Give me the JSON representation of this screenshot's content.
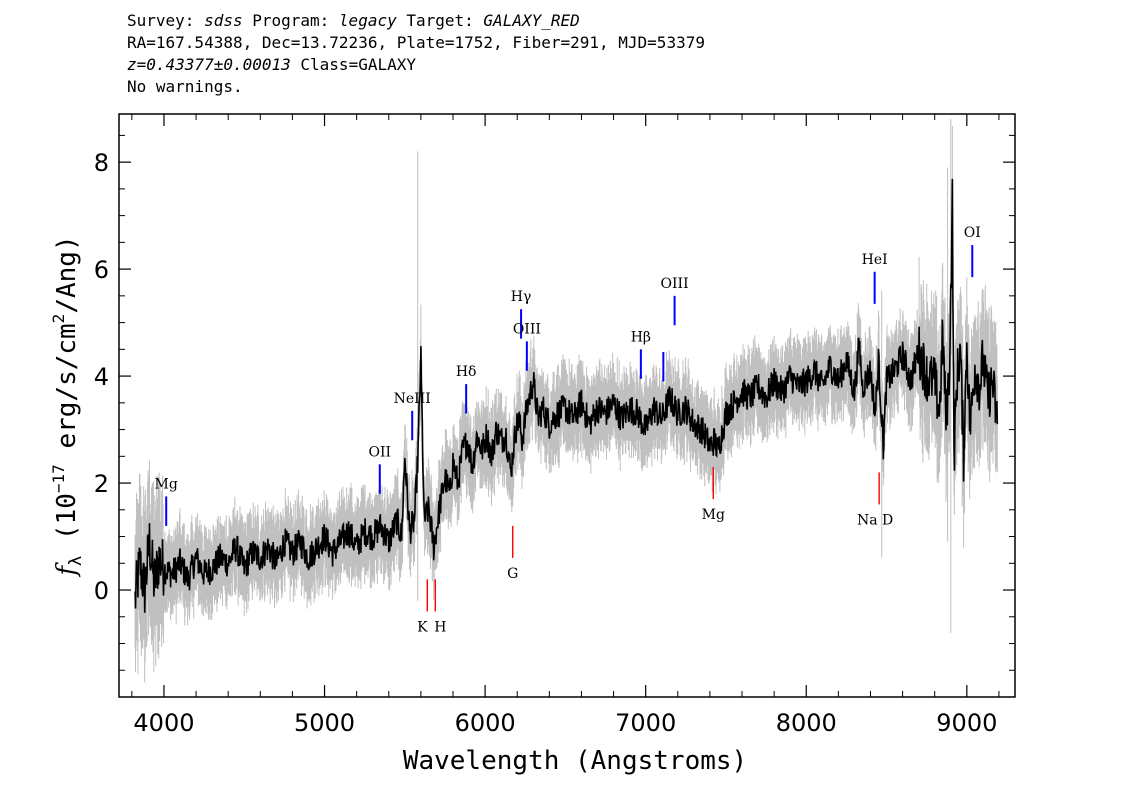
{
  "header": {
    "survey_label": "Survey: ",
    "survey": "sdss",
    "program_label": " Program: ",
    "program": "legacy",
    "target_label": " Target: ",
    "target": "GALAXY_RED",
    "line2": "RA=167.54388, Dec=13.72236, Plate=1752, Fiber=291, MJD=53379",
    "redshift": "z=0.43377±0.00013",
    "class_text": " Class=GALAXY",
    "line4": "No warnings."
  },
  "chart_data": {
    "type": "line",
    "xlabel": "Wavelength (Angstroms)",
    "ylabel_parts": [
      "f",
      "λ",
      " (10",
      "−17",
      " erg/s/cm",
      "2",
      "/Ang)"
    ],
    "xlim": [
      3720,
      9300
    ],
    "ylim": [
      -2.0,
      8.9
    ],
    "x_ticks": [
      4000,
      5000,
      6000,
      7000,
      8000,
      9000
    ],
    "y_ticks": [
      0,
      2,
      4,
      6,
      8
    ],
    "x_minor_step": 200,
    "y_minor_step": 0.5,
    "colors": {
      "flux": "#000000",
      "noise": "#c0c0c0",
      "emission": "#0000ff",
      "absorption": "#ff0000"
    },
    "series": [
      {
        "role": "flux",
        "x": [
          3820,
          3850,
          3880,
          3910,
          3940,
          3970,
          4000,
          4050,
          4100,
          4150,
          4200,
          4250,
          4300,
          4350,
          4400,
          4450,
          4500,
          4550,
          4600,
          4650,
          4700,
          4750,
          4800,
          4850,
          4900,
          4950,
          5000,
          5050,
          5100,
          5150,
          5200,
          5250,
          5300,
          5350,
          5400,
          5450,
          5480,
          5500,
          5530,
          5560,
          5580,
          5600,
          5620,
          5650,
          5680,
          5700,
          5720,
          5750,
          5780,
          5800,
          5830,
          5860,
          5890,
          5920,
          5950,
          5980,
          6010,
          6040,
          6070,
          6100,
          6130,
          6160,
          6190,
          6210,
          6230,
          6260,
          6300,
          6330,
          6360,
          6400,
          6450,
          6500,
          6550,
          6600,
          6650,
          6700,
          6750,
          6800,
          6850,
          6900,
          6950,
          7000,
          7050,
          7100,
          7150,
          7200,
          7250,
          7300,
          7350,
          7400,
          7430,
          7450,
          7480,
          7500,
          7550,
          7600,
          7650,
          7700,
          7750,
          7800,
          7850,
          7900,
          7950,
          8000,
          8050,
          8100,
          8150,
          8200,
          8250,
          8300,
          8330,
          8350,
          8400,
          8430,
          8450,
          8480,
          8500,
          8550,
          8600,
          8650,
          8700,
          8750,
          8800,
          8830,
          8850,
          8870,
          8890,
          8900,
          8910,
          8920,
          8940,
          8960,
          8980,
          9000,
          9020,
          9050,
          9080,
          9100,
          9130,
          9160,
          9190
        ],
        "y": [
          -0.2,
          0.5,
          0.0,
          0.9,
          0.1,
          0.6,
          0.4,
          0.3,
          0.5,
          0.2,
          0.6,
          0.3,
          0.4,
          0.6,
          0.5,
          0.8,
          0.4,
          0.7,
          0.6,
          0.8,
          0.5,
          0.9,
          0.7,
          0.9,
          0.6,
          0.8,
          1.0,
          0.7,
          0.9,
          1.1,
          0.8,
          1.1,
          1.0,
          1.2,
          0.9,
          1.3,
          1.0,
          2.5,
          1.1,
          1.3,
          2.4,
          4.3,
          1.3,
          1.5,
          0.8,
          1.2,
          1.6,
          2.1,
          1.8,
          2.4,
          2.0,
          2.6,
          2.8,
          2.3,
          2.9,
          2.6,
          2.9,
          2.5,
          3.0,
          2.8,
          2.9,
          2.2,
          3.0,
          3.2,
          2.8,
          3.4,
          3.9,
          3.2,
          3.4,
          3.1,
          3.3,
          3.4,
          3.2,
          3.5,
          3.1,
          3.4,
          3.3,
          3.5,
          3.2,
          3.4,
          3.3,
          3.0,
          3.4,
          3.2,
          3.6,
          3.3,
          3.4,
          3.1,
          3.0,
          2.7,
          2.8,
          2.6,
          3.0,
          3.3,
          3.5,
          3.7,
          3.6,
          3.8,
          3.6,
          3.9,
          3.7,
          4.0,
          3.8,
          3.9,
          4.1,
          3.8,
          4.2,
          3.9,
          4.3,
          3.7,
          4.6,
          3.8,
          4.1,
          3.3,
          4.3,
          2.7,
          3.9,
          4.1,
          4.4,
          3.9,
          4.5,
          4.0,
          3.9,
          3.3,
          4.8,
          3.2,
          4.0,
          5.5,
          7.3,
          2.5,
          4.0,
          4.5,
          2.5,
          4.6,
          3.0,
          4.2,
          3.8,
          4.3,
          3.6,
          3.9,
          3.1
        ]
      }
    ],
    "lines": [
      {
        "label": "Mg",
        "x": 4014,
        "type": "emission",
        "y0": 1.2,
        "y1": 1.75
      },
      {
        "label": "OII",
        "x": 5344,
        "type": "emission",
        "y0": 1.8,
        "y1": 2.35
      },
      {
        "label": "NeIII",
        "x": 5546,
        "type": "emission",
        "y0": 2.8,
        "y1": 3.35
      },
      {
        "label": "Hδ",
        "x": 5882,
        "type": "emission",
        "y0": 3.3,
        "y1": 3.85
      },
      {
        "label": "Hγ",
        "x": 6224,
        "type": "emission",
        "y0": 4.7,
        "y1": 5.25
      },
      {
        "label": "OIII",
        "x": 6260,
        "type": "emission",
        "y0": 4.1,
        "y1": 4.65
      },
      {
        "label": "Hβ",
        "x": 6970,
        "type": "emission",
        "y0": 3.95,
        "y1": 4.5
      },
      {
        "label": "",
        "x": 7110,
        "type": "emission",
        "y0": 3.9,
        "y1": 4.45
      },
      {
        "label": "OIII",
        "x": 7180,
        "type": "emission",
        "y0": 4.95,
        "y1": 5.5
      },
      {
        "label": "HeI",
        "x": 8426,
        "type": "emission",
        "y0": 5.35,
        "y1": 5.95
      },
      {
        "label": "OI",
        "x": 9034,
        "type": "emission",
        "y0": 5.85,
        "y1": 6.45
      },
      {
        "label": "K",
        "x": 5640,
        "type": "absorption",
        "y0": -0.4,
        "y1": 0.2
      },
      {
        "label": "H",
        "x": 5690,
        "type": "absorption",
        "y0": -0.4,
        "y1": 0.2
      },
      {
        "label": "G",
        "x": 6172,
        "type": "absorption",
        "y0": 0.6,
        "y1": 1.2
      },
      {
        "label": "Mg",
        "x": 7421,
        "type": "absorption",
        "y0": 1.7,
        "y1": 2.3
      },
      {
        "label": "Na D",
        "x": 8454,
        "type": "absorption",
        "y0": 1.6,
        "y1": 2.2
      }
    ]
  }
}
